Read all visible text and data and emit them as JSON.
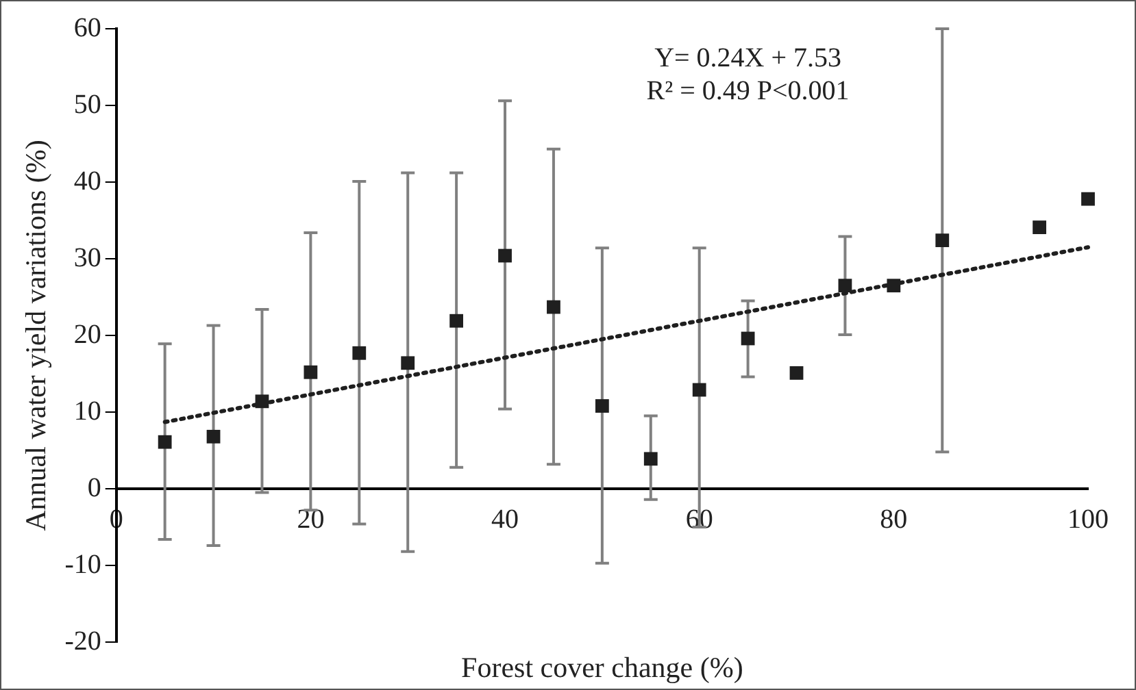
{
  "chart_data": {
    "type": "scatter",
    "xlabel": "Forest cover change (%)",
    "ylabel": "Annual water yield variations (%)",
    "annotations": [
      "Y= 0.24X + 7.53",
      "R² = 0.49 P<0.001"
    ],
    "xlim": [
      0,
      100
    ],
    "xticks": [
      0,
      20,
      40,
      60,
      80,
      100
    ],
    "ylim": [
      -20,
      60
    ],
    "yticks": [
      -20,
      -10,
      0,
      10,
      20,
      30,
      40,
      50,
      60
    ],
    "grid": false,
    "legend": false,
    "marker": "square",
    "series": [
      {
        "color": "#1f1f1f",
        "x": [
          5,
          10,
          15,
          20,
          25,
          30,
          35,
          40,
          45,
          50,
          55,
          60,
          65,
          70,
          75,
          80,
          85,
          95,
          100
        ],
        "values": [
          6.1,
          6.8,
          11.4,
          15.2,
          17.7,
          16.4,
          21.9,
          30.4,
          23.7,
          10.8,
          3.9,
          12.9,
          19.6,
          15.1,
          26.5,
          26.5,
          32.4,
          34.1,
          37.8
        ],
        "errors": [
          [
            -6.6,
            18.9
          ],
          [
            -7.4,
            21.3
          ],
          [
            -0.5,
            23.4
          ],
          [
            -2.8,
            33.4
          ],
          [
            -4.6,
            40.1
          ],
          [
            -8.2,
            41.2
          ],
          [
            2.8,
            41.2
          ],
          [
            10.4,
            50.6
          ],
          [
            3.2,
            44.3
          ],
          [
            -9.7,
            31.4
          ],
          [
            -1.4,
            9.5
          ],
          [
            -5,
            31.4
          ],
          [
            14.6,
            24.5
          ],
          null,
          [
            20.1,
            32.9
          ],
          null,
          [
            4.8,
            60
          ],
          null,
          null
        ]
      },
      {
        "type": "line",
        "color": "#1f1f1f",
        "line_style": "dotted",
        "marker": "none",
        "x": [
          5,
          100
        ],
        "values": [
          8.7,
          31.5
        ]
      }
    ]
  }
}
